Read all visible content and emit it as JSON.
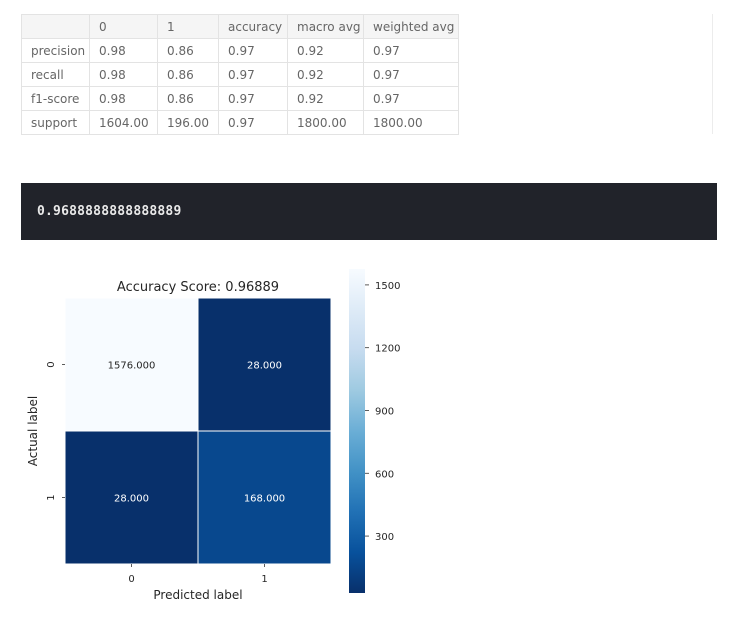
{
  "report": {
    "columns": [
      "",
      "0",
      "1",
      "accuracy",
      "macro avg",
      "weighted avg"
    ],
    "rows": [
      {
        "label": "precision",
        "values": [
          "0.98",
          "0.86",
          "0.97",
          "0.92",
          "0.97"
        ]
      },
      {
        "label": "recall",
        "values": [
          "0.98",
          "0.86",
          "0.97",
          "0.92",
          "0.97"
        ]
      },
      {
        "label": "f1-score",
        "values": [
          "0.98",
          "0.86",
          "0.97",
          "0.92",
          "0.97"
        ]
      },
      {
        "label": "support",
        "values": [
          "1604.00",
          "196.00",
          "0.97",
          "1800.00",
          "1800.00"
        ]
      }
    ]
  },
  "output": {
    "text": "0.9688888888888889"
  },
  "chart_data": {
    "type": "heatmap",
    "title": "Accuracy Score: 0.96889",
    "xlabel": "Predicted label",
    "ylabel": "Actual label",
    "x_categories": [
      "0",
      "1"
    ],
    "y_categories": [
      "0",
      "1"
    ],
    "matrix": [
      [
        1576,
        28
      ],
      [
        28,
        168
      ]
    ],
    "cell_labels": [
      [
        "1576.000",
        "28.000"
      ],
      [
        "28.000",
        "168.000"
      ]
    ],
    "colormap": "Blues_r",
    "colorbar": {
      "ticks": [
        1500,
        1200,
        900,
        600,
        300
      ],
      "tick_labels": [
        "1500",
        "1200",
        "900",
        "600",
        "300"
      ],
      "range": [
        28,
        1576
      ]
    }
  }
}
